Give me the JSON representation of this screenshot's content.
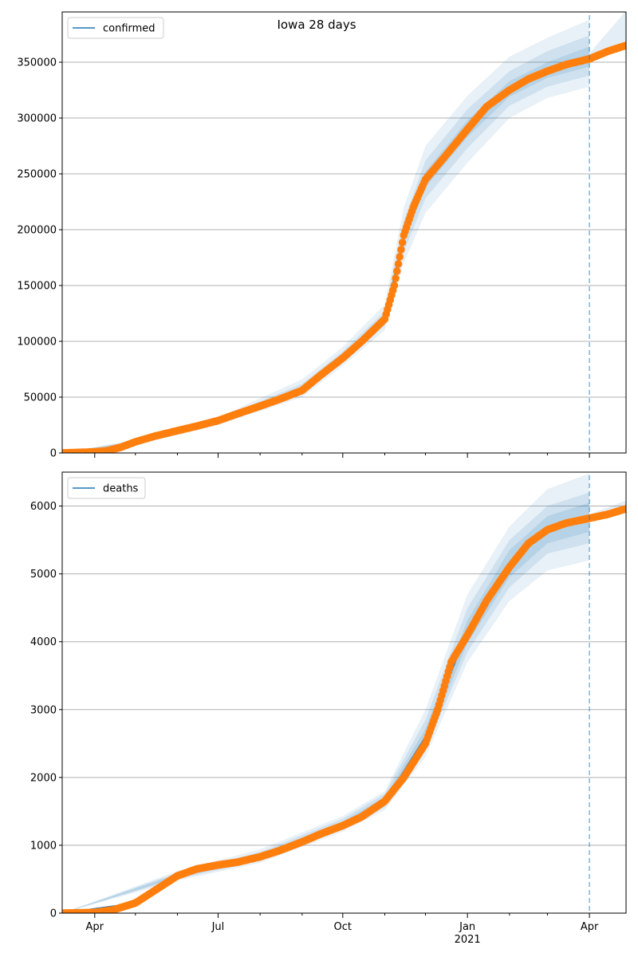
{
  "figure": {
    "title": "Iowa 28 days"
  },
  "chart_data": [
    {
      "type": "line",
      "legend": {
        "label": "confirmed",
        "placement": "top-left"
      },
      "grid": "horizontal",
      "ylim": [
        0,
        395000
      ],
      "yticks": [
        0,
        50000,
        100000,
        150000,
        200000,
        250000,
        300000,
        350000
      ],
      "ytick_labels": [
        "0",
        "50000",
        "100000",
        "150000",
        "200000",
        "250000",
        "300000",
        "350000"
      ],
      "xlim": [
        "2020-03-08",
        "2021-04-28"
      ],
      "xticks": [
        "2020-04-01",
        "2020-07-01",
        "2020-10-01",
        "2021-01-01",
        "2021-04-01"
      ],
      "xtick_labels": [],
      "minor_xticks": [
        "2020-05-01",
        "2020-06-01",
        "2020-08-01",
        "2020-09-01",
        "2020-11-01",
        "2020-12-01",
        "2021-02-01",
        "2021-03-01"
      ],
      "forecast_start": "2021-04-01",
      "colors": {
        "line": "#1f77b4",
        "points": "#ff7f0e",
        "band": "#1f77b4"
      },
      "points": [
        [
          "2020-03-08",
          0
        ],
        [
          "2020-04-01",
          1000
        ],
        [
          "2020-04-10",
          2000
        ],
        [
          "2020-04-20",
          5000
        ],
        [
          "2020-05-01",
          10000
        ],
        [
          "2020-05-15",
          15000
        ],
        [
          "2020-06-01",
          20000
        ],
        [
          "2020-06-15",
          24000
        ],
        [
          "2020-07-01",
          29000
        ],
        [
          "2020-07-15",
          35000
        ],
        [
          "2020-08-01",
          42000
        ],
        [
          "2020-08-15",
          48000
        ],
        [
          "2020-09-01",
          56000
        ],
        [
          "2020-09-15",
          70000
        ],
        [
          "2020-10-01",
          85000
        ],
        [
          "2020-10-15",
          100000
        ],
        [
          "2020-11-01",
          120000
        ],
        [
          "2020-11-08",
          150000
        ],
        [
          "2020-11-15",
          195000
        ],
        [
          "2020-11-22",
          220000
        ],
        [
          "2020-12-01",
          245000
        ],
        [
          "2020-12-15",
          265000
        ],
        [
          "2021-01-01",
          290000
        ],
        [
          "2021-01-15",
          310000
        ],
        [
          "2021-02-01",
          325000
        ],
        [
          "2021-02-15",
          335000
        ],
        [
          "2021-03-01",
          342000
        ],
        [
          "2021-03-15",
          348000
        ],
        [
          "2021-04-01",
          353000
        ],
        [
          "2021-04-15",
          360000
        ],
        [
          "2021-04-28",
          365000
        ]
      ],
      "forecast_line": [
        [
          "2020-03-08",
          0
        ],
        [
          "2020-04-01",
          1000
        ],
        [
          "2020-05-01",
          10000
        ],
        [
          "2020-06-01",
          20000
        ],
        [
          "2020-07-01",
          29000
        ],
        [
          "2020-08-01",
          42000
        ],
        [
          "2020-09-01",
          58000
        ],
        [
          "2020-10-01",
          86000
        ],
        [
          "2020-11-01",
          120000
        ],
        [
          "2020-11-15",
          195000
        ],
        [
          "2020-12-01",
          245000
        ],
        [
          "2021-01-01",
          291000
        ],
        [
          "2021-02-01",
          326000
        ],
        [
          "2021-03-01",
          343000
        ],
        [
          "2021-04-01",
          355000
        ]
      ],
      "band_levels": [
        {
          "opacity": 0.1,
          "lower": [
            [
              "2020-03-08",
              0
            ],
            [
              "2020-05-01",
              7000
            ],
            [
              "2020-07-01",
              25000
            ],
            [
              "2020-09-01",
              50000
            ],
            [
              "2020-10-01",
              78000
            ],
            [
              "2020-11-01",
              110000
            ],
            [
              "2020-11-15",
              170000
            ],
            [
              "2020-12-01",
              215000
            ],
            [
              "2021-01-01",
              260000
            ],
            [
              "2021-02-01",
              300000
            ],
            [
              "2021-03-01",
              318000
            ],
            [
              "2021-04-01",
              328000
            ]
          ],
          "upper": [
            [
              "2020-03-08",
              0
            ],
            [
              "2020-05-01",
              12000
            ],
            [
              "2020-07-01",
              32000
            ],
            [
              "2020-09-01",
              66000
            ],
            [
              "2020-10-01",
              95000
            ],
            [
              "2020-11-01",
              133000
            ],
            [
              "2020-11-15",
              220000
            ],
            [
              "2020-12-01",
              275000
            ],
            [
              "2021-01-01",
              320000
            ],
            [
              "2021-02-01",
              355000
            ],
            [
              "2021-03-01",
              372000
            ],
            [
              "2021-04-01",
              388000
            ]
          ]
        },
        {
          "opacity": 0.12,
          "lower": [
            [
              "2020-03-08",
              0
            ],
            [
              "2020-05-01",
              8000
            ],
            [
              "2020-07-01",
              26500
            ],
            [
              "2020-09-01",
              53000
            ],
            [
              "2020-10-01",
              81000
            ],
            [
              "2020-11-01",
              114000
            ],
            [
              "2020-11-15",
              180000
            ],
            [
              "2020-12-01",
              228000
            ],
            [
              "2021-01-01",
              273000
            ],
            [
              "2021-02-01",
              311000
            ],
            [
              "2021-03-01",
              328000
            ],
            [
              "2021-04-01",
              338000
            ]
          ],
          "upper": [
            [
              "2020-03-08",
              0
            ],
            [
              "2020-05-01",
              11000
            ],
            [
              "2020-07-01",
              30500
            ],
            [
              "2020-09-01",
              62000
            ],
            [
              "2020-10-01",
              91000
            ],
            [
              "2020-11-01",
              127000
            ],
            [
              "2020-11-15",
              208000
            ],
            [
              "2020-12-01",
              262000
            ],
            [
              "2021-01-01",
              308000
            ],
            [
              "2021-02-01",
              342000
            ],
            [
              "2021-03-01",
              360000
            ],
            [
              "2021-04-01",
              374000
            ]
          ]
        },
        {
          "opacity": 0.14,
          "lower": [
            [
              "2020-03-08",
              0
            ],
            [
              "2020-05-01",
              9000
            ],
            [
              "2020-07-01",
              27500
            ],
            [
              "2020-09-01",
              55000
            ],
            [
              "2020-10-01",
              83500
            ],
            [
              "2020-11-01",
              117000
            ],
            [
              "2020-11-15",
              188000
            ],
            [
              "2020-12-01",
              238000
            ],
            [
              "2021-01-01",
              283000
            ],
            [
              "2021-02-01",
              319000
            ],
            [
              "2021-03-01",
              336000
            ],
            [
              "2021-04-01",
              346000
            ]
          ],
          "upper": [
            [
              "2020-03-08",
              0
            ],
            [
              "2020-05-01",
              10500
            ],
            [
              "2020-07-01",
              29500
            ],
            [
              "2020-09-01",
              59000
            ],
            [
              "2020-10-01",
              88000
            ],
            [
              "2020-11-01",
              123000
            ],
            [
              "2020-11-15",
              200000
            ],
            [
              "2020-12-01",
              252000
            ],
            [
              "2021-01-01",
              298000
            ],
            [
              "2021-02-01",
              333000
            ],
            [
              "2021-03-01",
              350000
            ],
            [
              "2021-04-01",
              364000
            ]
          ]
        }
      ],
      "post_band": {
        "lower": [
          [
            "2021-04-01",
            352000
          ],
          [
            "2021-04-28",
            362000
          ]
        ],
        "upper": [
          [
            "2021-04-01",
            358000
          ],
          [
            "2021-04-28",
            396000
          ]
        ]
      }
    },
    {
      "type": "line",
      "legend": {
        "label": "deaths",
        "placement": "top-left"
      },
      "grid": "horizontal",
      "ylim": [
        0,
        6500
      ],
      "yticks": [
        0,
        1000,
        2000,
        3000,
        4000,
        5000,
        6000
      ],
      "ytick_labels": [
        "0",
        "1000",
        "2000",
        "3000",
        "4000",
        "5000",
        "6000"
      ],
      "xlim": [
        "2020-03-08",
        "2021-04-28"
      ],
      "xticks": [
        "2020-04-01",
        "2020-07-01",
        "2020-10-01",
        "2021-01-01",
        "2021-04-01"
      ],
      "xtick_labels": [
        "Apr",
        "Jul",
        "Oct",
        "Jan",
        "Apr"
      ],
      "xtick_year": {
        "under": "Jan",
        "label": "2021"
      },
      "minor_xticks": [
        "2020-05-01",
        "2020-06-01",
        "2020-08-01",
        "2020-09-01",
        "2020-11-01",
        "2020-12-01",
        "2021-02-01",
        "2021-03-01"
      ],
      "forecast_start": "2021-04-01",
      "colors": {
        "line": "#1f77b4",
        "points": "#ff7f0e",
        "band": "#1f77b4"
      },
      "points": [
        [
          "2020-03-08",
          0
        ],
        [
          "2020-04-01",
          10
        ],
        [
          "2020-04-15",
          50
        ],
        [
          "2020-05-01",
          150
        ],
        [
          "2020-05-15",
          330
        ],
        [
          "2020-06-01",
          550
        ],
        [
          "2020-06-15",
          650
        ],
        [
          "2020-07-01",
          710
        ],
        [
          "2020-07-15",
          750
        ],
        [
          "2020-08-01",
          830
        ],
        [
          "2020-08-15",
          920
        ],
        [
          "2020-09-01",
          1050
        ],
        [
          "2020-09-15",
          1170
        ],
        [
          "2020-10-01",
          1290
        ],
        [
          "2020-10-15",
          1420
        ],
        [
          "2020-11-01",
          1650
        ],
        [
          "2020-11-15",
          2000
        ],
        [
          "2020-12-01",
          2500
        ],
        [
          "2020-12-10",
          3000
        ],
        [
          "2020-12-20",
          3700
        ],
        [
          "2021-01-01",
          4100
        ],
        [
          "2021-01-15",
          4600
        ],
        [
          "2021-02-01",
          5100
        ],
        [
          "2021-02-15",
          5450
        ],
        [
          "2021-03-01",
          5650
        ],
        [
          "2021-03-15",
          5750
        ],
        [
          "2021-04-01",
          5820
        ],
        [
          "2021-04-15",
          5880
        ],
        [
          "2021-04-28",
          5960
        ]
      ],
      "forecast_line": [
        [
          "2020-03-08",
          0
        ],
        [
          "2020-05-01",
          150
        ],
        [
          "2020-06-01",
          550
        ],
        [
          "2020-07-01",
          710
        ],
        [
          "2020-08-01",
          830
        ],
        [
          "2020-09-01",
          1050
        ],
        [
          "2020-10-01",
          1300
        ],
        [
          "2020-11-01",
          1650
        ],
        [
          "2020-12-01",
          2600
        ],
        [
          "2021-01-01",
          4150
        ],
        [
          "2021-02-01",
          5150
        ],
        [
          "2021-03-01",
          5650
        ],
        [
          "2021-04-01",
          5850
        ]
      ],
      "band_levels": [
        {
          "opacity": 0.1,
          "lower": [
            [
              "2020-03-08",
              0
            ],
            [
              "2020-06-01",
              480
            ],
            [
              "2020-08-01",
              740
            ],
            [
              "2020-10-01",
              1200
            ],
            [
              "2020-11-01",
              1520
            ],
            [
              "2020-12-01",
              2300
            ],
            [
              "2021-01-01",
              3700
            ],
            [
              "2021-02-01",
              4600
            ],
            [
              "2021-03-01",
              5050
            ],
            [
              "2021-04-01",
              5200
            ]
          ],
          "upper": [
            [
              "2020-03-08",
              0
            ],
            [
              "2020-06-01",
              620
            ],
            [
              "2020-08-01",
              940
            ],
            [
              "2020-10-01",
              1430
            ],
            [
              "2020-11-01",
              1800
            ],
            [
              "2020-12-01",
              3000
            ],
            [
              "2021-01-01",
              4700
            ],
            [
              "2021-02-01",
              5700
            ],
            [
              "2021-03-01",
              6250
            ],
            [
              "2021-04-01",
              6480
            ]
          ]
        },
        {
          "opacity": 0.12,
          "lower": [
            [
              "2020-03-08",
              0
            ],
            [
              "2020-06-01",
              505
            ],
            [
              "2020-08-01",
              770
            ],
            [
              "2020-10-01",
              1230
            ],
            [
              "2020-11-01",
              1560
            ],
            [
              "2020-12-01",
              2400
            ],
            [
              "2021-01-01",
              3850
            ],
            [
              "2021-02-01",
              4800
            ],
            [
              "2021-03-01",
              5300
            ],
            [
              "2021-04-01",
              5450
            ]
          ],
          "upper": [
            [
              "2020-03-08",
              0
            ],
            [
              "2020-06-01",
              595
            ],
            [
              "2020-08-01",
              900
            ],
            [
              "2020-10-01",
              1390
            ],
            [
              "2020-11-01",
              1760
            ],
            [
              "2020-12-01",
              2850
            ],
            [
              "2021-01-01",
              4500
            ],
            [
              "2021-02-01",
              5500
            ],
            [
              "2021-03-01",
              6000
            ],
            [
              "2021-04-01",
              6200
            ]
          ]
        },
        {
          "opacity": 0.14,
          "lower": [
            [
              "2020-03-08",
              0
            ],
            [
              "2020-06-01",
              525
            ],
            [
              "2020-08-01",
              795
            ],
            [
              "2020-10-01",
              1260
            ],
            [
              "2020-11-01",
              1600
            ],
            [
              "2020-12-01",
              2480
            ],
            [
              "2021-01-01",
              3980
            ],
            [
              "2021-02-01",
              4950
            ],
            [
              "2021-03-01",
              5450
            ],
            [
              "2021-04-01",
              5620
            ]
          ],
          "upper": [
            [
              "2020-03-08",
              0
            ],
            [
              "2020-06-01",
              575
            ],
            [
              "2020-08-01",
              870
            ],
            [
              "2020-10-01",
              1350
            ],
            [
              "2020-11-01",
              1710
            ],
            [
              "2020-12-01",
              2720
            ],
            [
              "2021-01-01",
              4320
            ],
            [
              "2021-02-01",
              5350
            ],
            [
              "2021-03-01",
              5850
            ],
            [
              "2021-04-01",
              6050
            ]
          ]
        }
      ],
      "post_band": {
        "lower": [
          [
            "2021-04-01",
            5800
          ],
          [
            "2021-04-28",
            5940
          ]
        ],
        "upper": [
          [
            "2021-04-01",
            5880
          ],
          [
            "2021-04-28",
            6080
          ]
        ]
      }
    }
  ]
}
